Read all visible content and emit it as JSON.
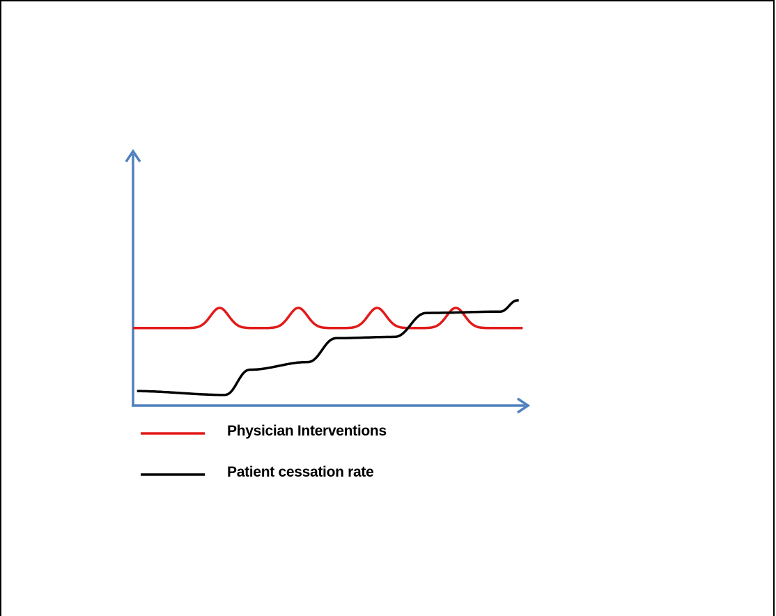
{
  "chart_data": {
    "type": "line",
    "title": "",
    "xlabel": "",
    "ylabel": "",
    "xlim": [
      0,
      10
    ],
    "ylim": [
      0,
      10
    ],
    "grid": false,
    "axis_color": "#4f81bd",
    "legend_position": "bottom-left",
    "series": [
      {
        "name": "Physician Interventions",
        "color": "#e21a1a",
        "shape": "periodic-peaks",
        "baseline": 3.1,
        "peaks": [
          {
            "x": 2.2,
            "y": 3.9
          },
          {
            "x": 4.2,
            "y": 3.9
          },
          {
            "x": 6.2,
            "y": 3.9
          },
          {
            "x": 8.2,
            "y": 3.9
          }
        ],
        "x_end": 9.9
      },
      {
        "name": "Patient cessation rate",
        "color": "#000000",
        "shape": "steps",
        "points": [
          [
            0.1,
            0.6
          ],
          [
            2.3,
            0.45
          ],
          [
            3.0,
            1.45
          ],
          [
            4.4,
            1.75
          ],
          [
            5.2,
            2.7
          ],
          [
            6.6,
            2.75
          ],
          [
            7.5,
            3.7
          ],
          [
            9.3,
            3.75
          ],
          [
            9.8,
            4.2
          ]
        ]
      }
    ]
  }
}
